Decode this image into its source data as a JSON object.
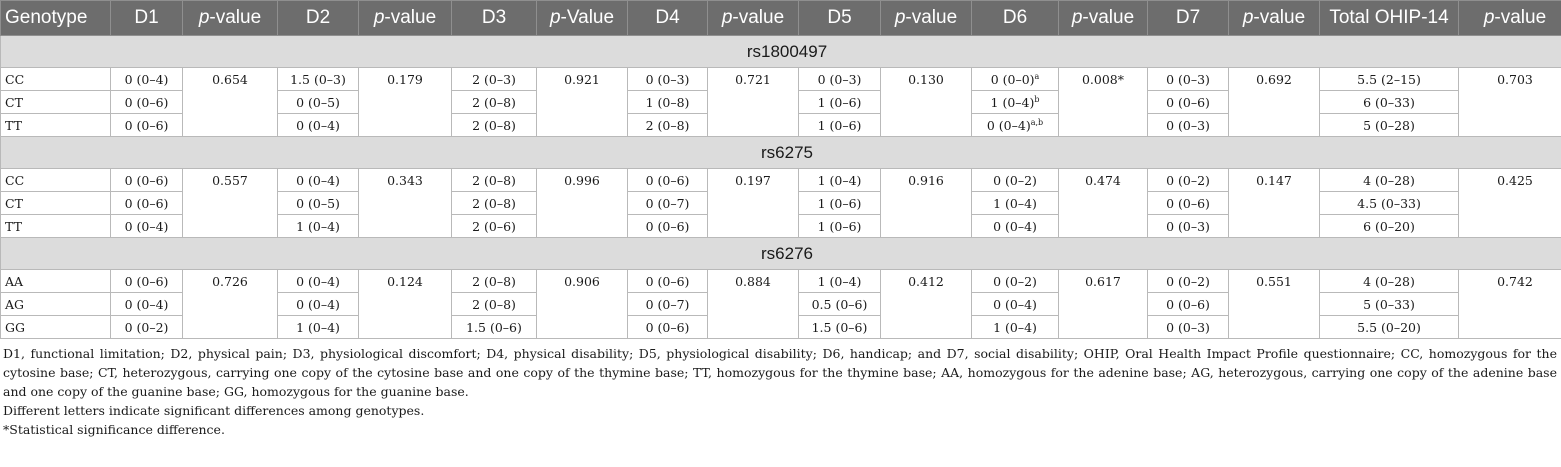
{
  "headers": [
    "Genotype",
    "D1",
    "p-value",
    "D2",
    "p-value",
    "D3",
    "p-Value",
    "D4",
    "p-value",
    "D5",
    "p-value",
    "D6",
    "p-value",
    "D7",
    "p-value",
    "Total OHIP-14",
    "p-value"
  ],
  "header_italic_prefix": "p",
  "groups": [
    {
      "snp": "rs1800497",
      "rows": [
        {
          "genotype": "CC",
          "cells": [
            "0 (0–4)",
            "1.5 (0–3)",
            "2 (0–3)",
            "0 (0–3)",
            "0 (0–3)",
            "0 (0–0)",
            "0 (0–3)",
            "5.5 (2–15)"
          ],
          "d6_sup": "a"
        },
        {
          "genotype": "CT",
          "cells": [
            "0 (0–6)",
            "0 (0–5)",
            "2 (0–8)",
            "1 (0–8)",
            "1 (0–6)",
            "1 (0–4)",
            "0 (0–6)",
            "6 (0–33)"
          ],
          "d6_sup": "b"
        },
        {
          "genotype": "TT",
          "cells": [
            "0 (0–6)",
            "0 (0–4)",
            "2 (0–8)",
            "2 (0–8)",
            "1 (0–6)",
            "0 (0–4)",
            "0 (0–3)",
            "5 (0–28)"
          ],
          "d6_sup": "a,b"
        }
      ],
      "pvalues": [
        "0.654",
        "0.179",
        "0.921",
        "0.721",
        "0.130",
        "0.008*",
        "0.692",
        "0.703"
      ]
    },
    {
      "snp": "rs6275",
      "rows": [
        {
          "genotype": "CC",
          "cells": [
            "0 (0–6)",
            "0 (0–4)",
            "2 (0–8)",
            "0 (0–6)",
            "1 (0–4)",
            "0 (0–2)",
            "0 (0–2)",
            "4 (0–28)"
          ],
          "d6_sup": ""
        },
        {
          "genotype": "CT",
          "cells": [
            "0 (0–6)",
            "0 (0–5)",
            "2 (0–8)",
            "0 (0–7)",
            "1 (0–6)",
            "1 (0–4)",
            "0 (0–6)",
            "4.5 (0–33)"
          ],
          "d6_sup": ""
        },
        {
          "genotype": "TT",
          "cells": [
            "0 (0–4)",
            "1 (0–4)",
            "2 (0–6)",
            "0 (0–6)",
            "1 (0–6)",
            "0 (0–4)",
            "0 (0–3)",
            "6 (0–20)"
          ],
          "d6_sup": ""
        }
      ],
      "pvalues": [
        "0.557",
        "0.343",
        "0.996",
        "0.197",
        "0.916",
        "0.474",
        "0.147",
        "0.425"
      ]
    },
    {
      "snp": "rs6276",
      "rows": [
        {
          "genotype": "AA",
          "cells": [
            "0 (0–6)",
            "0 (0–4)",
            "2 (0–8)",
            "0 (0–6)",
            "1 (0–4)",
            "0 (0–2)",
            "0 (0–2)",
            "4 (0–28)"
          ],
          "d6_sup": ""
        },
        {
          "genotype": "AG",
          "cells": [
            "0 (0–4)",
            "0 (0–4)",
            "2 (0–8)",
            "0 (0–7)",
            "0.5 (0–6)",
            "0 (0–4)",
            "0 (0–6)",
            "5 (0–33)"
          ],
          "d6_sup": ""
        },
        {
          "genotype": "GG",
          "cells": [
            "0 (0–2)",
            "1 (0–4)",
            "1.5 (0–6)",
            "0 (0–6)",
            "1.5 (0–6)",
            "1 (0–4)",
            "0 (0–3)",
            "5.5 (0–20)"
          ],
          "d6_sup": ""
        }
      ],
      "pvalues": [
        "0.726",
        "0.124",
        "0.906",
        "0.884",
        "0.412",
        "0.617",
        "0.551",
        "0.742"
      ]
    }
  ],
  "notes": {
    "abbreviations": "D1, functional limitation; D2, physical pain; D3, physiological discomfort; D4, physical disability; D5, physiological disability; D6, handicap; and D7, social disability; OHIP, Oral Health Impact Profile questionnaire; CC, homozygous for the cytosine base; CT, heterozygous, carrying one copy of the cytosine base and one copy of the thymine base; TT, homozygous for the thymine base; AA, homozygous for the adenine base; AG, heterozygous, carrying one copy of the adenine base and one copy of the guanine base; GG, homozygous for the guanine base.",
    "letters": "Different letters indicate significant differences among genotypes.",
    "asterisk": "*Statistical significance difference."
  }
}
